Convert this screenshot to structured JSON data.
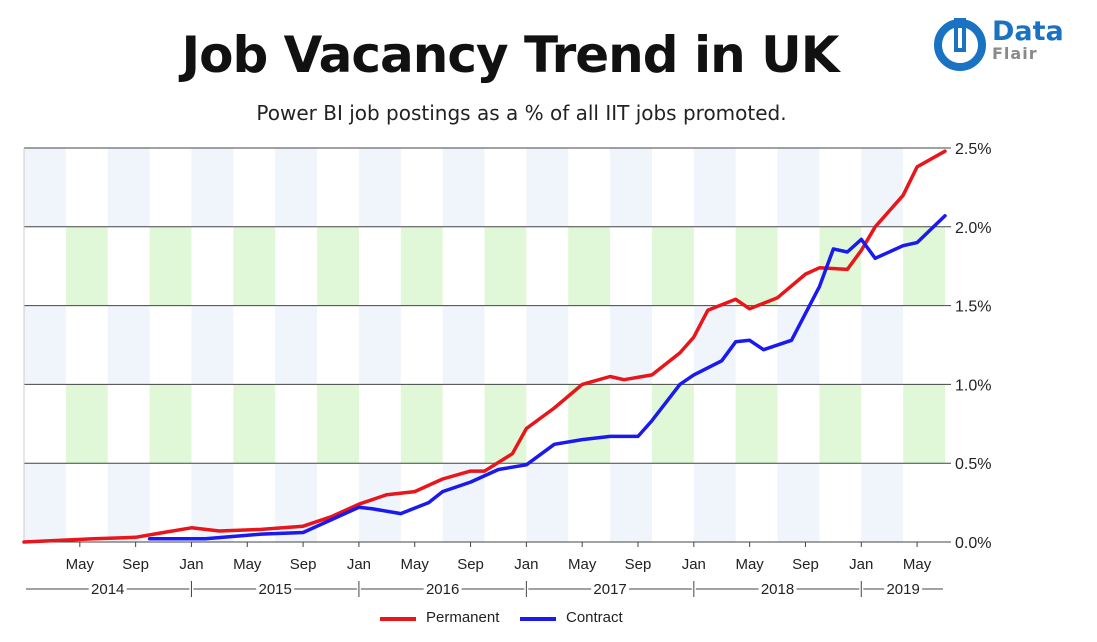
{
  "header": {
    "title": "Job Vacancy Trend in UK",
    "subtitle": "Power BI job postings as a % of all IIT jobs promoted."
  },
  "brand": {
    "line1": "Data",
    "line2": "Flair",
    "colors": {
      "primary": "#1a73c2",
      "secondary": "#8a8a8a"
    }
  },
  "colors": {
    "permanent": "#e8151b",
    "contract": "#1a1aee",
    "band_green": "#e0f8d8",
    "band_blue": "#f0f4fb",
    "grid": "#444444"
  },
  "chart_data": {
    "type": "line",
    "title": "Job Vacancy Trend in UK",
    "subtitle": "Power BI job postings as a % of all IIT jobs promoted.",
    "x_start": "2014-01",
    "x_end": "2019-07",
    "ylim": [
      0,
      2.5
    ],
    "y_ticks": [
      "0.0%",
      "0.5%",
      "1.0%",
      "1.5%",
      "2.0%",
      "2.5%"
    ],
    "y_axis_side": "right",
    "x_tick_labels": [
      {
        "date": "2014-05",
        "label": "May"
      },
      {
        "date": "2014-09",
        "label": "Sep"
      },
      {
        "date": "2015-01",
        "label": "Jan"
      },
      {
        "date": "2015-05",
        "label": "May"
      },
      {
        "date": "2015-09",
        "label": "Sep"
      },
      {
        "date": "2016-01",
        "label": "Jan"
      },
      {
        "date": "2016-05",
        "label": "May"
      },
      {
        "date": "2016-09",
        "label": "Sep"
      },
      {
        "date": "2017-01",
        "label": "Jan"
      },
      {
        "date": "2017-05",
        "label": "May"
      },
      {
        "date": "2017-09",
        "label": "Sep"
      },
      {
        "date": "2018-01",
        "label": "Jan"
      },
      {
        "date": "2018-05",
        "label": "May"
      },
      {
        "date": "2018-09",
        "label": "Sep"
      },
      {
        "date": "2019-01",
        "label": "Jan"
      },
      {
        "date": "2019-05",
        "label": "May"
      }
    ],
    "years": [
      "2014",
      "2015",
      "2016",
      "2017",
      "2018",
      "2019"
    ],
    "grid": true,
    "legend_position": "bottom",
    "series": [
      {
        "name": "Permanent",
        "color": "#e8151b",
        "points": [
          [
            "2014-01",
            0.0
          ],
          [
            "2014-06",
            0.02
          ],
          [
            "2014-09",
            0.03
          ],
          [
            "2014-11",
            0.06
          ],
          [
            "2015-01",
            0.09
          ],
          [
            "2015-03",
            0.07
          ],
          [
            "2015-06",
            0.08
          ],
          [
            "2015-09",
            0.1
          ],
          [
            "2015-11",
            0.16
          ],
          [
            "2016-01",
            0.24
          ],
          [
            "2016-03",
            0.3
          ],
          [
            "2016-05",
            0.32
          ],
          [
            "2016-07",
            0.4
          ],
          [
            "2016-09",
            0.45
          ],
          [
            "2016-10",
            0.45
          ],
          [
            "2016-12",
            0.56
          ],
          [
            "2017-01",
            0.72
          ],
          [
            "2017-03",
            0.85
          ],
          [
            "2017-05",
            1.0
          ],
          [
            "2017-07",
            1.05
          ],
          [
            "2017-08",
            1.03
          ],
          [
            "2017-10",
            1.06
          ],
          [
            "2017-12",
            1.2
          ],
          [
            "2018-01",
            1.3
          ],
          [
            "2018-02",
            1.47
          ],
          [
            "2018-04",
            1.54
          ],
          [
            "2018-05",
            1.48
          ],
          [
            "2018-07",
            1.55
          ],
          [
            "2018-09",
            1.7
          ],
          [
            "2018-10",
            1.74
          ],
          [
            "2018-12",
            1.73
          ],
          [
            "2019-01",
            1.85
          ],
          [
            "2019-02",
            2.0
          ],
          [
            "2019-04",
            2.2
          ],
          [
            "2019-05",
            2.38
          ],
          [
            "2019-07",
            2.48
          ]
        ]
      },
      {
        "name": "Contract",
        "color": "#1a1aee",
        "points": [
          [
            "2014-10",
            0.02
          ],
          [
            "2015-02",
            0.02
          ],
          [
            "2015-06",
            0.05
          ],
          [
            "2015-09",
            0.06
          ],
          [
            "2016-01",
            0.22
          ],
          [
            "2016-02",
            0.21
          ],
          [
            "2016-04",
            0.18
          ],
          [
            "2016-06",
            0.25
          ],
          [
            "2016-07",
            0.32
          ],
          [
            "2016-09",
            0.38
          ],
          [
            "2016-11",
            0.46
          ],
          [
            "2017-01",
            0.49
          ],
          [
            "2017-03",
            0.62
          ],
          [
            "2017-05",
            0.65
          ],
          [
            "2017-07",
            0.67
          ],
          [
            "2017-09",
            0.67
          ],
          [
            "2017-10",
            0.77
          ],
          [
            "2017-12",
            1.0
          ],
          [
            "2018-01",
            1.06
          ],
          [
            "2018-03",
            1.15
          ],
          [
            "2018-04",
            1.27
          ],
          [
            "2018-05",
            1.28
          ],
          [
            "2018-06",
            1.22
          ],
          [
            "2018-08",
            1.28
          ],
          [
            "2018-10",
            1.62
          ],
          [
            "2018-11",
            1.86
          ],
          [
            "2018-12",
            1.84
          ],
          [
            "2019-01",
            1.92
          ],
          [
            "2019-02",
            1.8
          ],
          [
            "2019-04",
            1.88
          ],
          [
            "2019-05",
            1.9
          ],
          [
            "2019-07",
            2.07
          ]
        ]
      }
    ]
  }
}
